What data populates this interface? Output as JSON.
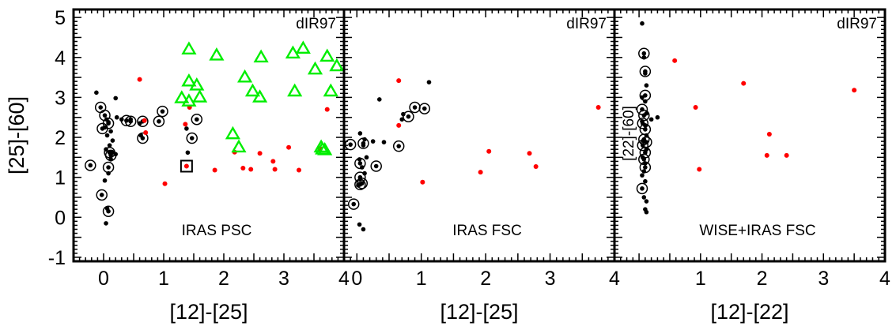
{
  "figure": {
    "y_axis_label": "[25]-[60]",
    "y_ticks": [
      5,
      4,
      3,
      2,
      1,
      0,
      -1
    ],
    "y_tick_labels": [
      "5",
      "4",
      "3",
      "2",
      "1",
      "0",
      "-1"
    ]
  },
  "chart_data": [
    {
      "type": "scatter",
      "panel": "IRAS PSC",
      "tag": "dIR97",
      "label": "IRAS PSC",
      "xlabel": "[12]-[25]",
      "ylabel": "[25]-[60]",
      "xlim": [
        -0.5,
        4
      ],
      "ylim": [
        -1.1,
        5.2
      ],
      "x_ticks": [
        0,
        1,
        2,
        3,
        4
      ],
      "x_tick_labels": [
        "0",
        "1",
        "2",
        "3",
        "4"
      ],
      "colors": {
        "black": "#000000",
        "red": "#ff0000",
        "green": "#00ee00"
      },
      "series": [
        {
          "marker": "dot-black",
          "points": [
            [
              -0.12,
              3.12
            ],
            [
              0.05,
              2.45
            ],
            [
              0.08,
              2.38
            ],
            [
              0.02,
              2.25
            ],
            [
              0.12,
              2.15
            ],
            [
              0.06,
              2.05
            ],
            [
              0.15,
              1.92
            ],
            [
              0.1,
              1.8
            ],
            [
              0.04,
              1.7
            ],
            [
              0.14,
              1.62
            ],
            [
              0.2,
              1.58
            ],
            [
              0.12,
              1.45
            ],
            [
              0.08,
              1.1
            ],
            [
              0.02,
              0.92
            ],
            [
              0.06,
              0.22
            ],
            [
              0.04,
              -0.15
            ],
            [
              0.2,
              2.98
            ],
            [
              0.22,
              2.5
            ],
            [
              0.3,
              2.45
            ],
            [
              0.45,
              2.45
            ],
            [
              0.6,
              2.35
            ],
            [
              0.62,
              2.05
            ],
            [
              1.38,
              2.22
            ],
            [
              1.4,
              1.62
            ]
          ]
        },
        {
          "marker": "circled-black",
          "points": [
            [
              -0.22,
              1.3
            ],
            [
              -0.05,
              2.75
            ],
            [
              -0.02,
              2.22
            ],
            [
              0.02,
              2.55
            ],
            [
              0.08,
              2.35
            ],
            [
              0.1,
              1.62
            ],
            [
              0.12,
              1.55
            ],
            [
              0.08,
              1.25
            ],
            [
              -0.03,
              0.56
            ],
            [
              0.08,
              0.15
            ],
            [
              0.38,
              2.42
            ],
            [
              0.45,
              2.4
            ],
            [
              0.65,
              1.98
            ],
            [
              0.65,
              2.4
            ],
            [
              0.92,
              2.4
            ],
            [
              0.98,
              2.65
            ],
            [
              1.47,
              1.98
            ],
            [
              1.55,
              2.45
            ]
          ]
        },
        {
          "marker": "dot-red",
          "points": [
            [
              0.6,
              3.45
            ],
            [
              0.68,
              2.42
            ],
            [
              0.7,
              2.12
            ],
            [
              1.02,
              0.84
            ],
            [
              1.36,
              2.33
            ],
            [
              1.43,
              2.75
            ],
            [
              1.85,
              1.18
            ],
            [
              2.18,
              1.63
            ],
            [
              2.32,
              1.23
            ],
            [
              2.45,
              1.2
            ],
            [
              2.6,
              1.6
            ],
            [
              2.82,
              1.4
            ],
            [
              2.85,
              1.2
            ],
            [
              3.08,
              1.75
            ],
            [
              3.25,
              1.18
            ],
            [
              3.6,
              1.72
            ],
            [
              3.72,
              2.7
            ]
          ]
        },
        {
          "marker": "squared-red",
          "points": [
            [
              1.38,
              1.28
            ]
          ]
        },
        {
          "marker": "triangle-green",
          "points": [
            [
              1.42,
              4.2
            ],
            [
              1.42,
              3.4
            ],
            [
              1.55,
              3.3
            ],
            [
              1.3,
              2.98
            ],
            [
              1.42,
              2.9
            ],
            [
              1.6,
              3.0
            ],
            [
              1.88,
              4.05
            ],
            [
              2.15,
              2.08
            ],
            [
              2.25,
              1.75
            ],
            [
              2.35,
              3.5
            ],
            [
              2.48,
              3.15
            ],
            [
              2.6,
              3.0
            ],
            [
              2.62,
              4.0
            ],
            [
              3.15,
              4.1
            ],
            [
              3.18,
              3.15
            ],
            [
              3.32,
              4.22
            ],
            [
              3.52,
              3.7
            ],
            [
              3.62,
              1.75
            ],
            [
              3.64,
              1.7
            ],
            [
              3.68,
              1.68
            ],
            [
              3.72,
              4.02
            ],
            [
              3.78,
              3.15
            ],
            [
              3.88,
              3.78
            ]
          ]
        }
      ]
    },
    {
      "type": "scatter",
      "panel": "IRAS FSC",
      "tag": "dIR97",
      "label": "IRAS FSC",
      "xlabel": "[12]-[25]",
      "xlim": [
        -0.2,
        4
      ],
      "ylim": [
        -1.1,
        5.2
      ],
      "x_ticks": [
        0,
        1,
        2,
        3,
        4
      ],
      "x_tick_labels": [
        "0",
        "1",
        "2",
        "3",
        "4"
      ],
      "series": [
        {
          "marker": "dot-black",
          "points": [
            [
              0.05,
              2.1
            ],
            [
              0.12,
              1.95
            ],
            [
              0.1,
              1.8
            ],
            [
              0.15,
              1.5
            ],
            [
              0.04,
              1.45
            ],
            [
              0.08,
              1.25
            ],
            [
              0.12,
              1.1
            ],
            [
              0.05,
              0.95
            ],
            [
              0.02,
              0.8
            ],
            [
              0.04,
              -0.18
            ],
            [
              0.1,
              -0.3
            ],
            [
              0.25,
              1.9
            ],
            [
              0.35,
              2.95
            ],
            [
              0.42,
              1.88
            ],
            [
              0.7,
              2.45
            ],
            [
              0.72,
              2.58
            ],
            [
              1.12,
              3.38
            ]
          ]
        },
        {
          "marker": "circled-black",
          "points": [
            [
              -0.1,
              1.82
            ],
            [
              0.1,
              1.85
            ],
            [
              0.05,
              1.35
            ],
            [
              0.05,
              1.0
            ],
            [
              0.08,
              0.85
            ],
            [
              0.05,
              0.82
            ],
            [
              0.3,
              1.28
            ],
            [
              -0.05,
              0.33
            ],
            [
              0.65,
              1.78
            ],
            [
              0.8,
              2.52
            ],
            [
              0.9,
              2.75
            ],
            [
              1.05,
              2.72
            ]
          ]
        },
        {
          "marker": "dot-red",
          "points": [
            [
              0.65,
              3.42
            ],
            [
              0.65,
              2.3
            ],
            [
              1.02,
              0.88
            ],
            [
              1.92,
              1.13
            ],
            [
              2.05,
              1.65
            ],
            [
              2.68,
              1.6
            ],
            [
              2.78,
              1.27
            ],
            [
              3.75,
              2.75
            ]
          ]
        }
      ]
    },
    {
      "type": "scatter",
      "panel": "WISE+IRAS FSC",
      "tag": "dIR97",
      "label": "WISE+IRAS FSC",
      "xlabel": "[12]-[22]",
      "ylabel": "[22]-[60]",
      "xlim": [
        -0.4,
        4
      ],
      "ylim": [
        -1.1,
        5.2
      ],
      "x_ticks": [
        1,
        2,
        3,
        4
      ],
      "x_tick_labels": [
        "1",
        "2",
        "3",
        "4"
      ],
      "series": [
        {
          "marker": "dot-black",
          "points": [
            [
              0.05,
              4.85
            ],
            [
              0.08,
              4.0
            ],
            [
              0.1,
              3.6
            ],
            [
              0.12,
              3.3
            ],
            [
              0.05,
              3.0
            ],
            [
              0.1,
              2.9
            ],
            [
              0.12,
              2.6
            ],
            [
              0.05,
              2.4
            ],
            [
              0.1,
              2.3
            ],
            [
              0.12,
              2.05
            ],
            [
              0.08,
              1.9
            ],
            [
              0.12,
              1.7
            ],
            [
              0.06,
              1.5
            ],
            [
              0.1,
              1.35
            ],
            [
              0.08,
              1.15
            ],
            [
              0.05,
              1.05
            ],
            [
              0.1,
              0.9
            ],
            [
              0.08,
              0.5
            ],
            [
              0.12,
              0.4
            ],
            [
              0.1,
              0.2
            ],
            [
              0.12,
              0.13
            ],
            [
              0.3,
              2.5
            ],
            [
              0.2,
              2.45
            ]
          ]
        },
        {
          "marker": "circled-black",
          "points": [
            [
              0.08,
              4.1
            ],
            [
              0.1,
              3.65
            ],
            [
              0.1,
              3.05
            ],
            [
              0.05,
              2.7
            ],
            [
              0.08,
              2.55
            ],
            [
              0.06,
              2.35
            ],
            [
              0.1,
              2.2
            ],
            [
              0.08,
              1.95
            ],
            [
              0.12,
              1.88
            ],
            [
              0.06,
              1.8
            ],
            [
              0.1,
              1.62
            ],
            [
              0.08,
              1.45
            ],
            [
              0.1,
              1.25
            ],
            [
              0.05,
              0.72
            ]
          ]
        },
        {
          "marker": "dot-red",
          "points": [
            [
              0.58,
              3.92
            ],
            [
              0.92,
              2.75
            ],
            [
              0.98,
              1.2
            ],
            [
              1.7,
              3.35
            ],
            [
              2.08,
              1.55
            ],
            [
              2.12,
              2.08
            ],
            [
              2.4,
              1.55
            ],
            [
              3.5,
              3.18
            ]
          ]
        }
      ]
    }
  ]
}
